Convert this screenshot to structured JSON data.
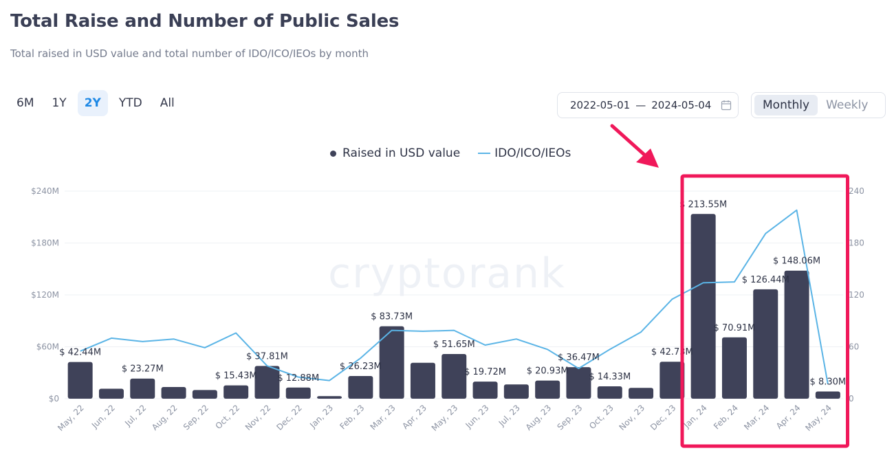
{
  "header": {
    "title": "Total Raise and Number of Public Sales",
    "subtitle": "Total raised in USD value and total number of IDO/ICO/IEOs by month"
  },
  "ranges": [
    "6M",
    "1Y",
    "2Y",
    "YTD",
    "All"
  ],
  "active_range": "2Y",
  "date_range": {
    "start": "2022-05-01",
    "separator": "—",
    "end": "2024-05-04"
  },
  "period": {
    "options": [
      "Monthly",
      "Weekly"
    ],
    "active": "Monthly"
  },
  "watermark": "cryptorank",
  "colors": {
    "bar": "#3f4259",
    "line": "#5ab4e6",
    "highlight": "#f0185a",
    "active": "#1e88e5"
  },
  "chart_data": {
    "type": "bar+line",
    "categories": [
      "May, 22",
      "Jun, 22",
      "Jul, 22",
      "Aug, 22",
      "Sep, 22",
      "Oct, 22",
      "Nov, 22",
      "Dec, 22",
      "Jan, 23",
      "Feb, 23",
      "Mar, 23",
      "Apr, 23",
      "May, 23",
      "Jun, 23",
      "Jul, 23",
      "Aug, 23",
      "Sep, 23",
      "Oct, 23",
      "Nov, 23",
      "Dec, 23",
      "Jan, 24",
      "Feb, 24",
      "Mar, 24",
      "Apr, 24",
      "May, 24"
    ],
    "series": [
      {
        "name": "Raised in USD value",
        "axis": "left",
        "type": "bar",
        "values": [
          42.44,
          11.5,
          23.27,
          13.5,
          10.0,
          15.43,
          37.81,
          12.88,
          3.0,
          26.23,
          83.73,
          41.5,
          51.65,
          19.72,
          16.5,
          20.93,
          36.47,
          14.33,
          12.5,
          42.73,
          213.55,
          70.91,
          126.44,
          148.06,
          8.3
        ]
      },
      {
        "name": "IDO/ICO/IEOs",
        "axis": "right",
        "type": "line",
        "values": [
          55,
          70,
          66,
          69,
          59,
          76,
          38,
          25,
          21,
          47,
          79,
          78,
          79,
          62,
          69,
          57,
          35,
          57,
          77,
          115,
          134,
          135,
          191,
          218,
          17
        ]
      }
    ],
    "data_labels": [
      "$ 42.44M",
      null,
      "$ 23.27M",
      null,
      null,
      "$ 15.43M",
      "$ 37.81M",
      "$ 12.88M",
      null,
      "$ 26.23M",
      "$ 83.73M",
      null,
      "$ 51.65M",
      "$ 19.72M",
      null,
      "$ 20.93M",
      "$ 36.47M",
      "$ 14.33M",
      null,
      "$ 42.73M",
      "$ 213.55M",
      "$ 70.91M",
      "$ 126.44M",
      "$ 148.06M",
      "$ 8.30M"
    ],
    "left_axis": {
      "ticks": [
        0,
        60,
        120,
        180,
        240
      ],
      "labels": [
        "$0",
        "$60M",
        "$120M",
        "$180M",
        "$240M"
      ],
      "ylim": [
        0,
        240
      ]
    },
    "right_axis": {
      "ticks": [
        0,
        60,
        120,
        180,
        240
      ],
      "labels": [
        "0",
        "60",
        "120",
        "180",
        "240"
      ],
      "ylim": [
        0,
        240
      ]
    },
    "highlight": {
      "from_category": "Jan, 24",
      "to_category": "May, 24",
      "annotation": "arrow"
    }
  }
}
